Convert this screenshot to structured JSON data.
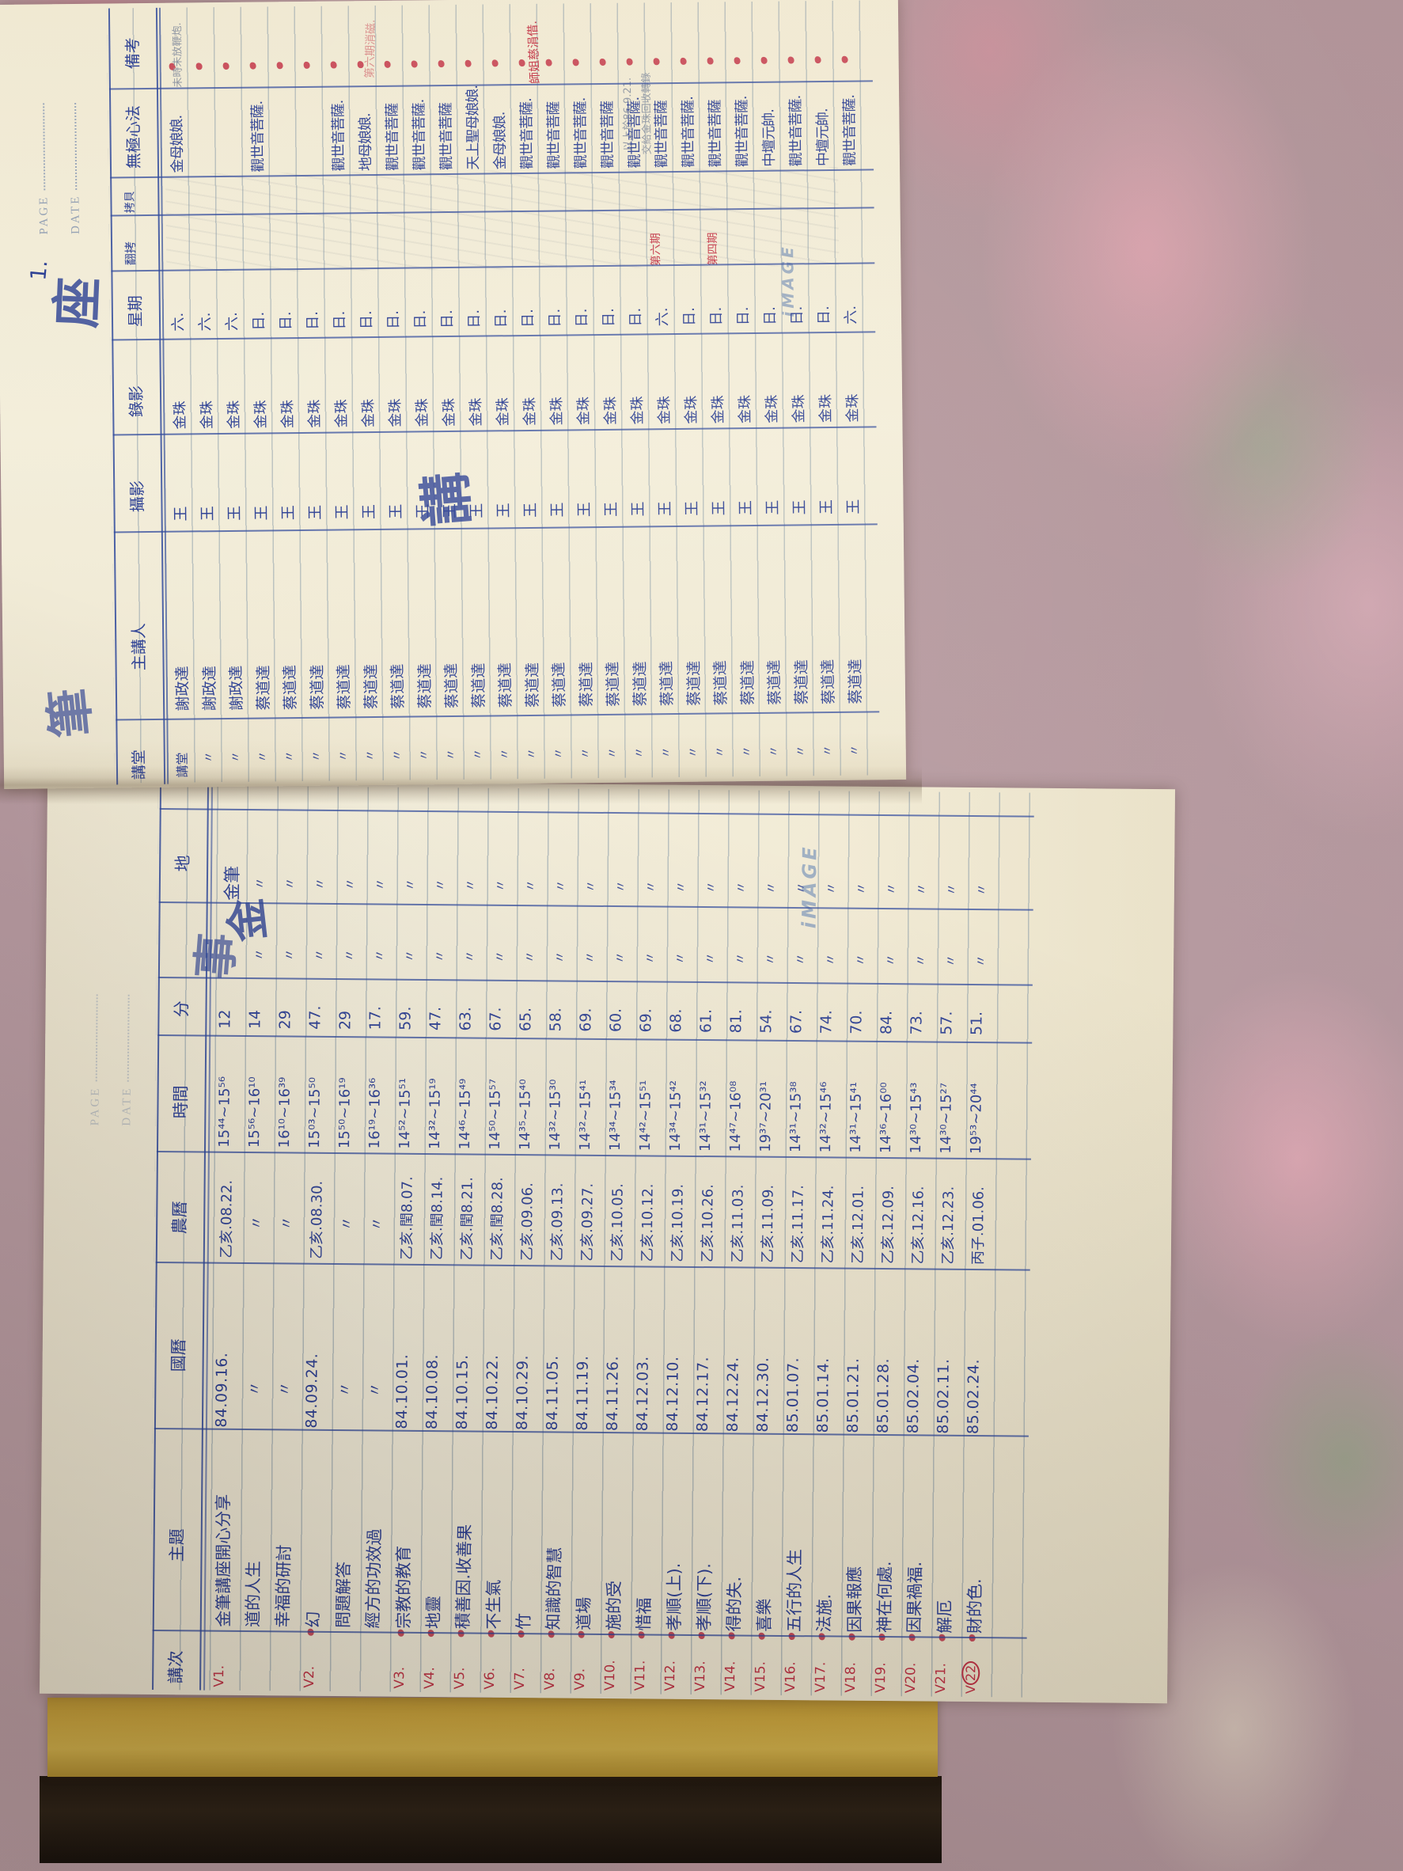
{
  "meta": {
    "brand": "iMAGE",
    "page_label": "PAGE",
    "date_label": "DATE",
    "page_number": "1."
  },
  "title_chars": {
    "left_big_1": "金",
    "left_big_2": "事",
    "right_top_left": "筆",
    "right_top": "座",
    "right_mid": "講"
  },
  "left_page": {
    "headers": [
      "講次",
      "主題",
      "國曆",
      "農曆",
      "時間",
      "分",
      "地"
    ],
    "rows": [
      {
        "no": "V1.",
        "topic": "金筆講座開心分享",
        "greg": "84.09.16.",
        "lunar": "乙亥.08.22.",
        "time": "15⁴⁴~15⁵⁶",
        "min": "12",
        "d1": "",
        "place": "金筆"
      },
      {
        "no": "",
        "topic": "道的人生",
        "greg": "〃",
        "lunar": "〃",
        "time": "15⁵⁶~16¹⁰",
        "min": "14",
        "d1": "〃",
        "place": "〃"
      },
      {
        "no": "",
        "topic": "幸福的研討",
        "greg": "〃",
        "lunar": "〃",
        "time": "16¹⁰~16³⁹",
        "min": "29",
        "d1": "〃",
        "place": "〃"
      },
      {
        "no": "V2.",
        "topic": "幻",
        "greg": "84.09.24.",
        "lunar": "乙亥.08.30.",
        "time": "15⁰³~15⁵⁰",
        "min": "47.",
        "d1": "〃",
        "place": "〃"
      },
      {
        "no": "",
        "topic": "問題解答",
        "greg": "〃",
        "lunar": "〃",
        "time": "15⁵⁰~16¹⁹",
        "min": "29",
        "d1": "〃",
        "place": "〃"
      },
      {
        "no": "",
        "topic": "經方的功效過",
        "greg": "〃",
        "lunar": "〃",
        "time": "16¹⁹~16³⁶",
        "min": "17.",
        "d1": "〃",
        "place": "〃"
      },
      {
        "no": "V3.",
        "topic": "宗教的教育",
        "greg": "84.10.01.",
        "lunar": "乙亥.閏8.07.",
        "time": "14⁵²~15⁵¹",
        "min": "59.",
        "d1": "〃",
        "place": "〃"
      },
      {
        "no": "V4.",
        "topic": "地靈",
        "greg": "84.10.08.",
        "lunar": "乙亥.閏8.14.",
        "time": "14³²~15¹⁹",
        "min": "47.",
        "d1": "〃",
        "place": "〃"
      },
      {
        "no": "V5.",
        "topic": "積善因.收善果",
        "greg": "84.10.15.",
        "lunar": "乙亥.閏8.21.",
        "time": "14⁴⁶~15⁴⁹",
        "min": "63.",
        "d1": "〃",
        "place": "〃"
      },
      {
        "no": "V6.",
        "topic": "不生氣",
        "greg": "84.10.22.",
        "lunar": "乙亥.閏8.28.",
        "time": "14⁵⁰~15⁵⁷",
        "min": "67.",
        "d1": "〃",
        "place": "〃"
      },
      {
        "no": "V7.",
        "topic": "竹",
        "greg": "84.10.29.",
        "lunar": "乙亥.09.06.",
        "time": "14³⁵~15⁴⁰",
        "min": "65.",
        "d1": "〃",
        "place": "〃"
      },
      {
        "no": "V8.",
        "topic": "知識的智慧",
        "greg": "84.11.05.",
        "lunar": "乙亥.09.13.",
        "time": "14³²~15³⁰",
        "min": "58.",
        "d1": "〃",
        "place": "〃"
      },
      {
        "no": "V9.",
        "topic": "道場",
        "greg": "84.11.19.",
        "lunar": "乙亥.09.27.",
        "time": "14³²~15⁴¹",
        "min": "69.",
        "d1": "〃",
        "place": "〃"
      },
      {
        "no": "V10.",
        "topic": "施的受",
        "greg": "84.11.26.",
        "lunar": "乙亥.10.05.",
        "time": "14³⁴~15³⁴",
        "min": "60.",
        "d1": "〃",
        "place": "〃"
      },
      {
        "no": "V11.",
        "topic": "惜福",
        "greg": "84.12.03.",
        "lunar": "乙亥.10.12.",
        "time": "14⁴²~15⁵¹",
        "min": "69.",
        "d1": "〃",
        "place": "〃"
      },
      {
        "no": "V12.",
        "topic": "孝順(上).",
        "greg": "84.12.10.",
        "lunar": "乙亥.10.19.",
        "time": "14³⁴~15⁴²",
        "min": "68.",
        "d1": "〃",
        "place": "〃"
      },
      {
        "no": "V13.",
        "topic": "孝順(下).",
        "greg": "84.12.17.",
        "lunar": "乙亥.10.26.",
        "time": "14³¹~15³²",
        "min": "61.",
        "d1": "〃",
        "place": "〃"
      },
      {
        "no": "V14.",
        "topic": "得的失.",
        "greg": "84.12.24.",
        "lunar": "乙亥.11.03.",
        "time": "14⁴⁷~16⁰⁸",
        "min": "81.",
        "d1": "〃",
        "place": "〃"
      },
      {
        "no": "V15.",
        "topic": "喜樂",
        "greg": "84.12.30.",
        "lunar": "乙亥.11.09.",
        "time": "19³⁷~20³¹",
        "min": "54.",
        "d1": "〃",
        "place": "〃"
      },
      {
        "no": "V16.",
        "topic": "五行的人生",
        "greg": "85.01.07.",
        "lunar": "乙亥.11.17.",
        "time": "14³¹~15³⁸",
        "min": "67.",
        "d1": "〃",
        "place": "〃"
      },
      {
        "no": "V17.",
        "topic": "法施.",
        "greg": "85.01.14.",
        "lunar": "乙亥.11.24.",
        "time": "14³²~15⁴⁶",
        "min": "74.",
        "d1": "〃",
        "place": "〃"
      },
      {
        "no": "V18.",
        "topic": "因果報應",
        "greg": "85.01.21.",
        "lunar": "乙亥.12.01.",
        "time": "14³¹~15⁴¹",
        "min": "70.",
        "d1": "〃",
        "place": "〃"
      },
      {
        "no": "V19.",
        "topic": "神在何處.",
        "greg": "85.01.28.",
        "lunar": "乙亥.12.09.",
        "time": "14³⁶~16⁰⁰",
        "min": "84.",
        "d1": "〃",
        "place": "〃"
      },
      {
        "no": "V20.",
        "topic": "因果禍福.",
        "greg": "85.02.04.",
        "lunar": "乙亥.12.16.",
        "time": "14³⁰~15⁴³",
        "min": "73.",
        "d1": "〃",
        "place": "〃"
      },
      {
        "no": "V21.",
        "topic": "解厄",
        "greg": "85.02.11.",
        "lunar": "乙亥.12.23.",
        "time": "14³⁰~15²⁷",
        "min": "57.",
        "d1": "〃",
        "place": "〃"
      },
      {
        "no": "V22",
        "topic": "財的色.",
        "greg": "85.02.24.",
        "lunar": "丙子.01.06.",
        "time": "19⁵³~20⁴⁴",
        "min": "51.",
        "d1": "〃",
        "place": "〃"
      }
    ]
  },
  "right_page": {
    "headers": [
      "講堂",
      "主講人",
      "攝影",
      "錄影",
      "星期",
      "翻拷",
      "拷貝",
      "無極心法",
      "備考"
    ],
    "rows": [
      {
        "hall": "講堂",
        "speaker": "謝政達",
        "camera": "王",
        "video": "金珠",
        "week": "六.",
        "deity": "金母娘娘."
      },
      {
        "hall": "〃",
        "speaker": "謝政達",
        "camera": "王",
        "video": "金珠",
        "week": "六.",
        "deity": ""
      },
      {
        "hall": "〃",
        "speaker": "謝政達",
        "camera": "王",
        "video": "金珠",
        "week": "六.",
        "deity": ""
      },
      {
        "hall": "〃",
        "speaker": "蔡道達",
        "camera": "王",
        "video": "金珠",
        "week": "日.",
        "deity": "觀世音菩薩."
      },
      {
        "hall": "〃",
        "speaker": "蔡道達",
        "camera": "王",
        "video": "金珠",
        "week": "日.",
        "deity": ""
      },
      {
        "hall": "〃",
        "speaker": "蔡道達",
        "camera": "王",
        "video": "金珠",
        "week": "日.",
        "deity": ""
      },
      {
        "hall": "〃",
        "speaker": "蔡道達",
        "camera": "王",
        "video": "金珠",
        "week": "日.",
        "deity": "觀世音菩薩."
      },
      {
        "hall": "〃",
        "speaker": "蔡道達",
        "camera": "王",
        "video": "金珠",
        "week": "日.",
        "deity": "地母娘娘."
      },
      {
        "hall": "〃",
        "speaker": "蔡道達",
        "camera": "王",
        "video": "金珠",
        "week": "日.",
        "deity": "觀世音菩薩"
      },
      {
        "hall": "〃",
        "speaker": "蔡道達",
        "camera": "王",
        "video": "金珠",
        "week": "日.",
        "deity": "觀世音菩薩."
      },
      {
        "hall": "〃",
        "speaker": "蔡道達",
        "camera": "王",
        "video": "金珠",
        "week": "日.",
        "deity": "觀世音菩薩"
      },
      {
        "hall": "〃",
        "speaker": "蔡道達",
        "camera": "王",
        "video": "金珠",
        "week": "日.",
        "deity": "天上聖母娘娘."
      },
      {
        "hall": "〃",
        "speaker": "蔡道達",
        "camera": "王",
        "video": "金珠",
        "week": "日.",
        "deity": "金母娘娘."
      },
      {
        "hall": "〃",
        "speaker": "蔡道達",
        "camera": "王",
        "video": "金珠",
        "week": "日.",
        "deity": "觀世音菩薩."
      },
      {
        "hall": "〃",
        "speaker": "蔡道達",
        "camera": "王",
        "video": "金珠",
        "week": "日.",
        "deity": "觀世音菩薩"
      },
      {
        "hall": "〃",
        "speaker": "蔡道達",
        "camera": "王",
        "video": "金珠",
        "week": "日.",
        "deity": "觀世音菩薩."
      },
      {
        "hall": "〃",
        "speaker": "蔡道達",
        "camera": "王",
        "video": "金珠",
        "week": "日.",
        "deity": "觀世音菩薩"
      },
      {
        "hall": "〃",
        "speaker": "蔡道達",
        "camera": "王",
        "video": "金珠",
        "week": "日.",
        "deity": "觀世音菩薩."
      },
      {
        "hall": "〃",
        "speaker": "蔡道達",
        "camera": "王",
        "video": "金珠",
        "week": "六.",
        "deity": "觀世音菩薩"
      },
      {
        "hall": "〃",
        "speaker": "蔡道達",
        "camera": "王",
        "video": "金珠",
        "week": "日.",
        "deity": "觀世音菩薩."
      },
      {
        "hall": "〃",
        "speaker": "蔡道達",
        "camera": "王",
        "video": "金珠",
        "week": "日.",
        "deity": "觀世音菩薩"
      },
      {
        "hall": "〃",
        "speaker": "蔡道達",
        "camera": "王",
        "video": "金珠",
        "week": "日.",
        "deity": "觀世音菩薩."
      },
      {
        "hall": "〃",
        "speaker": "蔡道達",
        "camera": "王",
        "video": "金珠",
        "week": "日.",
        "deity": "中壇元帥."
      },
      {
        "hall": "〃",
        "speaker": "蔡道達",
        "camera": "王",
        "video": "金珠",
        "week": "日.",
        "deity": "觀世音菩薩."
      },
      {
        "hall": "〃",
        "speaker": "蔡道達",
        "camera": "王",
        "video": "金珠",
        "week": "日.",
        "deity": "中壇元帥."
      },
      {
        "hall": "〃",
        "speaker": "蔡道達",
        "camera": "王",
        "video": "金珠",
        "week": "六.",
        "deity": "觀世音菩薩."
      }
    ]
  },
  "annotations": {
    "pencil_row1": "未時未放鞭炮.",
    "pencil_upper": "以上於86.9.21.",
    "pencil_upper2": "交給金珠回收轉錄",
    "red_borrow": "師姐慈涓借.",
    "red_faint": "第六期消磁.",
    "red_batch6": "第六期",
    "red_batch4": "第四期"
  }
}
